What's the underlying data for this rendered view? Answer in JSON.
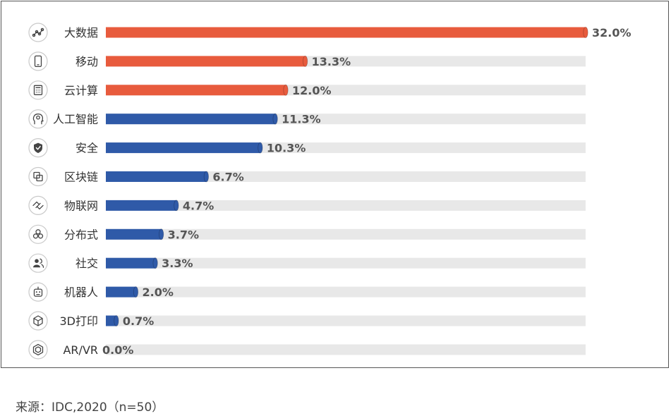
{
  "chart_data": {
    "type": "bar",
    "orientation": "horizontal",
    "categories": [
      "大数据",
      "移动",
      "云计算",
      "人工智能",
      "安全",
      "区块链",
      "物联网",
      "分布式",
      "社交",
      "机器人",
      "3D打印",
      "AR/VR"
    ],
    "values": [
      32.0,
      13.3,
      12.0,
      11.3,
      10.3,
      6.7,
      4.7,
      3.7,
      3.3,
      2.0,
      0.7,
      0.0
    ],
    "value_labels": [
      "32.0%",
      "13.3%",
      "12.0%",
      "11.3%",
      "10.3%",
      "6.7%",
      "4.7%",
      "3.7%",
      "3.3%",
      "2.0%",
      "0.7%",
      "0.0%"
    ],
    "bar_colors": [
      "#e85b3d",
      "#e85b3d",
      "#e85b3d",
      "#2f5aa8",
      "#2f5aa8",
      "#2f5aa8",
      "#2f5aa8",
      "#2f5aa8",
      "#2f5aa8",
      "#2f5aa8",
      "#2f5aa8",
      "#2f5aa8"
    ],
    "icons": [
      "data-network-icon",
      "mobile-phone-icon",
      "calculator-icon",
      "ai-head-icon",
      "shield-icon",
      "blockchain-icon",
      "iot-link-icon",
      "distributed-nodes-icon",
      "social-users-icon",
      "robot-icon",
      "3d-cube-icon",
      "ar-vr-hexagon-icon"
    ],
    "xlim": [
      0,
      32.0
    ],
    "track_color": "#e8e8e8",
    "grid": false,
    "legend": "none"
  },
  "source_note": "来源：IDC,2020（n=50）"
}
